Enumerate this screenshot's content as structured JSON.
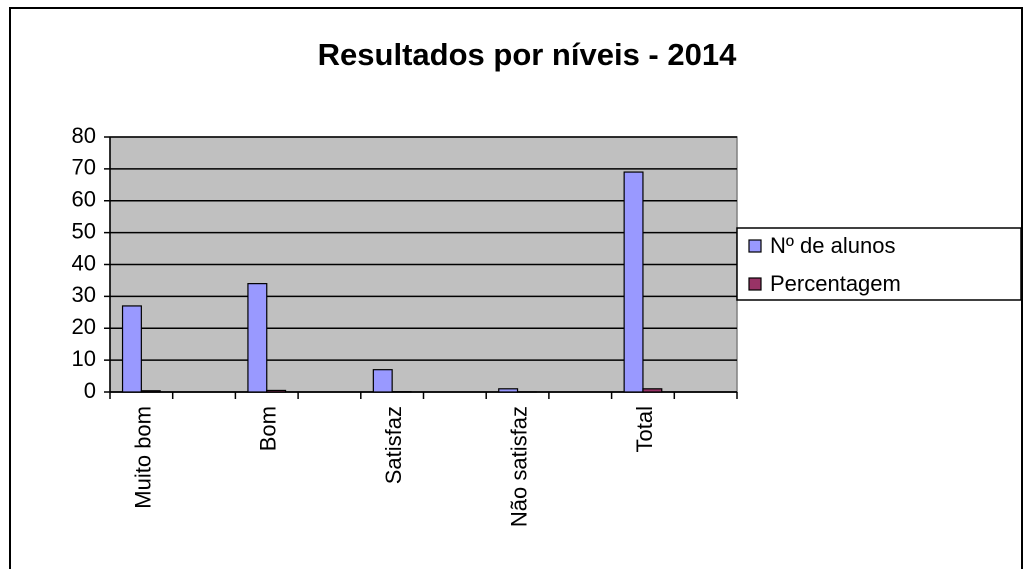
{
  "chart_data": {
    "type": "bar",
    "title": "Resultados por níveis - 2014",
    "categories": [
      "Muito bom",
      null,
      "Bom",
      null,
      "Satisfaz",
      null,
      "Não satisfaz",
      null,
      "Total",
      null
    ],
    "series": [
      {
        "name": "Nº de alunos",
        "color": "#9999ff",
        "values": [
          27,
          null,
          34,
          null,
          7,
          null,
          1,
          null,
          69,
          null
        ]
      },
      {
        "name": "Percentagem",
        "color": "#993366",
        "values": [
          0.39,
          null,
          0.49,
          null,
          0.1,
          null,
          0.01,
          null,
          1,
          null
        ]
      }
    ],
    "ylim": [
      0,
      80
    ],
    "yticks": [
      0,
      10,
      20,
      30,
      40,
      50,
      60,
      70,
      80
    ],
    "grid": true,
    "legend": "right"
  }
}
